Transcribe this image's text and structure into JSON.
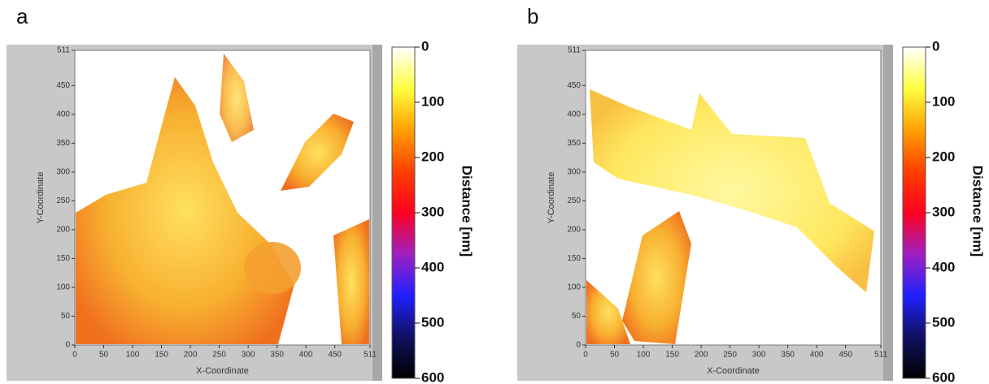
{
  "chart_data": [
    {
      "type": "heatmap",
      "panel_label": "a",
      "x_label": "X-Coordinate",
      "y_label": "Y-Coordinate",
      "xlim": [
        0,
        511
      ],
      "ylim": [
        0,
        511
      ],
      "xticks": [
        0,
        50,
        100,
        150,
        200,
        250,
        300,
        350,
        400,
        450,
        511
      ],
      "yticks": [
        0,
        50,
        100,
        150,
        200,
        250,
        300,
        350,
        400,
        450,
        511
      ],
      "colorbar_label": "Distance [nm]",
      "colorbar_lim": [
        0,
        600
      ],
      "colorbar_ticks": [
        0,
        100,
        200,
        300,
        400,
        500,
        600
      ],
      "colormap": [
        "#ffffff",
        "#ffff40",
        "#ffa000",
        "#ff4000",
        "#ff0020",
        "#a020c0",
        "#2020ff",
        "#101060",
        "#000000"
      ]
    },
    {
      "type": "heatmap",
      "panel_label": "b",
      "x_label": "X-Coordinate",
      "y_label": "Y-Coordinate",
      "xlim": [
        0,
        511
      ],
      "ylim": [
        0,
        511
      ],
      "xticks": [
        0,
        50,
        100,
        150,
        200,
        250,
        300,
        350,
        400,
        450,
        511
      ],
      "yticks": [
        0,
        50,
        100,
        150,
        200,
        250,
        300,
        350,
        400,
        450,
        511
      ],
      "colorbar_label": "Distance [nm]",
      "colorbar_lim": [
        0,
        600
      ],
      "colorbar_ticks": [
        0,
        100,
        200,
        300,
        400,
        500,
        600
      ],
      "colormap": [
        "#ffffff",
        "#ffff40",
        "#ffa000",
        "#ff4000",
        "#ff0020",
        "#a020c0",
        "#2020ff",
        "#101060",
        "#000000"
      ]
    }
  ]
}
